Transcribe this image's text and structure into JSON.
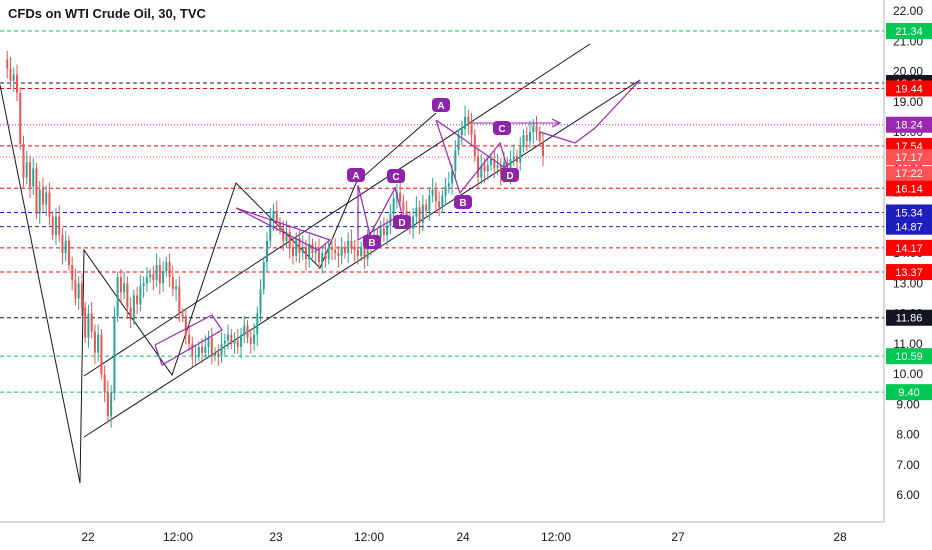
{
  "header": {
    "title": "CFDs on WTI Crude Oil, 30, TVC"
  },
  "colors": {
    "up": "#26a69a",
    "down": "#ef5350",
    "pattern": "#9c27b0",
    "label_bg": "#8e24aa",
    "red": "#ff0000",
    "green": "#00c853",
    "black": "#131722",
    "blue": "#1e1ebe",
    "current": "#ff5252"
  },
  "chart_data": {
    "type": "candlestick",
    "title": "CFDs on WTI Crude Oil, 30, TVC",
    "xlabel": "",
    "ylabel": "",
    "ylim": [
      5.4,
      22.4
    ],
    "x_ticks": [
      "22",
      "12:00",
      "23",
      "12:00",
      "24",
      "12:00",
      "27",
      "28"
    ],
    "y_ticks": [
      "22.00",
      "21.00",
      "20.00",
      "19.00",
      "18.00",
      "17.00",
      "16.00",
      "15.00",
      "14.00",
      "13.00",
      "12.00",
      "11.00",
      "10.00",
      "9.00",
      "8.00",
      "7.00",
      "6.00"
    ],
    "series_note": "approximate OHLC path of 30-minute candles",
    "path": [
      20.4,
      20.1,
      19.7,
      19.9,
      19.3,
      17.6,
      16.5,
      17.0,
      16.2,
      16.8,
      15.3,
      16.1,
      15.6,
      16.0,
      15.2,
      14.6,
      15.2,
      14.6,
      14.0,
      14.4,
      13.6,
      13.1,
      12.5,
      13.0,
      12.2,
      11.2,
      12.0,
      11.4,
      10.7,
      11.3,
      10.0,
      9.4,
      8.6,
      9.4,
      11.9,
      13.2,
      12.7,
      13.0,
      12.2,
      11.8,
      12.6,
      12.3,
      12.9,
      13.0,
      13.2,
      13.3,
      13.1,
      13.6,
      13.0,
      13.4,
      13.7,
      13.2,
      12.8,
      12.9,
      12.0,
      11.9,
      11.3,
      11.0,
      10.6,
      10.6,
      10.9,
      10.7,
      10.9,
      11.2,
      10.6,
      10.7,
      10.6,
      11.0,
      11.1,
      11.3,
      11.0,
      11.1,
      10.9,
      11.3,
      11.6,
      11.2,
      11.0,
      11.3,
      12.0,
      12.8,
      13.7,
      14.4,
      15.1,
      15.4,
      15.0,
      14.8,
      14.4,
      14.7,
      14.2,
      13.9,
      14.5,
      14.0,
      14.2,
      13.8,
      14.3,
      14.0,
      14.1,
      13.7,
      14.0,
      13.8,
      14.2,
      14.1,
      14.0,
      13.9,
      14.2,
      14.0,
      14.4,
      14.2,
      14.1,
      13.9,
      14.2,
      13.8,
      14.4,
      14.3,
      14.6,
      14.5,
      14.8,
      14.6,
      14.9,
      15.3,
      15.8,
      16.0,
      15.7,
      15.4,
      15.2,
      14.8,
      15.2,
      15.5,
      15.0,
      15.6,
      15.4,
      15.9,
      16.1,
      15.7,
      15.5,
      15.9,
      16.2,
      16.3,
      16.7,
      17.4,
      17.9,
      18.1,
      18.5,
      18.3,
      17.9,
      17.2,
      16.5,
      16.9,
      16.7,
      16.9,
      17.1,
      16.8,
      16.9,
      16.6,
      17.0,
      16.6,
      17.1,
      17.2,
      17.0,
      17.5,
      17.9,
      17.7,
      18.0,
      18.2,
      18.0,
      17.7,
      17.2
    ]
  },
  "price_lines": [
    {
      "value": "21.34",
      "style": "green"
    },
    {
      "value": "19.62",
      "style": "black"
    },
    {
      "value": "19.44",
      "style": "red"
    },
    {
      "value": "18.24",
      "style": "purple"
    },
    {
      "value": "17.54",
      "style": "red"
    },
    {
      "value": "17.17",
      "style": "current"
    },
    {
      "value": "16.14",
      "style": "red"
    },
    {
      "value": "15.34",
      "style": "blue"
    },
    {
      "value": "14.87",
      "style": "blue"
    },
    {
      "value": "14.17",
      "style": "red"
    },
    {
      "value": "13.37",
      "style": "red"
    },
    {
      "value": "11.86",
      "style": "black"
    },
    {
      "value": "10.59",
      "style": "green"
    },
    {
      "value": "9.40",
      "style": "green"
    }
  ],
  "countdown": "17:22",
  "pattern_labels": [
    "A",
    "B",
    "C",
    "D",
    "A",
    "B",
    "C",
    "D"
  ]
}
